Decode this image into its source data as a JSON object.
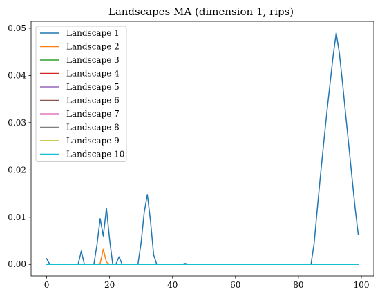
{
  "chart_data": {
    "type": "line",
    "title": "Landscapes MA (dimension 1, rips)",
    "xlabel": "",
    "ylabel": "",
    "xlim": [
      -4.95,
      103.95
    ],
    "ylim": [
      -0.00245,
      0.05145
    ],
    "xticks": [
      0,
      20,
      40,
      60,
      80,
      100
    ],
    "yticks": [
      0.0,
      0.01,
      0.02,
      0.03,
      0.04,
      0.05
    ],
    "xtick_labels": [
      "0",
      "20",
      "40",
      "60",
      "80",
      "100"
    ],
    "ytick_labels": [
      "0.00",
      "0.01",
      "0.02",
      "0.03",
      "0.04",
      "0.05"
    ],
    "grid": false,
    "legend_position": "top-left",
    "series": [
      {
        "name": "Landscape 1",
        "color": "#1f77b4",
        "points": [
          [
            0,
            0.0012
          ],
          [
            1,
            0
          ],
          [
            10,
            0
          ],
          [
            11,
            0.0028
          ],
          [
            12,
            0
          ],
          [
            15,
            0
          ],
          [
            16,
            0.0042
          ],
          [
            17,
            0.0097
          ],
          [
            18,
            0.006
          ],
          [
            19,
            0.0119
          ],
          [
            20,
            0.0053
          ],
          [
            21,
            0
          ],
          [
            22,
            0
          ],
          [
            23,
            0.0016
          ],
          [
            24,
            0
          ],
          [
            29,
            0
          ],
          [
            30,
            0.0045
          ],
          [
            31,
            0.011
          ],
          [
            32,
            0.0148
          ],
          [
            33,
            0.0092
          ],
          [
            34,
            0.002
          ],
          [
            35,
            0
          ],
          [
            43,
            0
          ],
          [
            44,
            0.0002
          ],
          [
            45,
            0
          ],
          [
            84,
            0
          ],
          [
            85,
            0.0045
          ],
          [
            86,
            0.0118
          ],
          [
            87,
            0.0188
          ],
          [
            88,
            0.0255
          ],
          [
            89,
            0.032
          ],
          [
            90,
            0.038
          ],
          [
            91,
            0.044
          ],
          [
            92,
            0.049
          ],
          [
            93,
            0.0448
          ],
          [
            94,
            0.0385
          ],
          [
            95,
            0.0318
          ],
          [
            96,
            0.0252
          ],
          [
            97,
            0.0185
          ],
          [
            98,
            0.012
          ],
          [
            99,
            0.0064
          ]
        ]
      },
      {
        "name": "Landscape 2",
        "color": "#ff7f0e",
        "points": [
          [
            0,
            0
          ],
          [
            16,
            0
          ],
          [
            17,
            0.0002
          ],
          [
            18,
            0.0032
          ],
          [
            19,
            0.0005
          ],
          [
            20,
            0
          ],
          [
            99,
            0
          ]
        ]
      },
      {
        "name": "Landscape 3",
        "color": "#2ca02c",
        "points": [
          [
            0,
            0
          ],
          [
            99,
            0
          ]
        ]
      },
      {
        "name": "Landscape 4",
        "color": "#d62728",
        "points": [
          [
            0,
            0
          ],
          [
            99,
            0
          ]
        ]
      },
      {
        "name": "Landscape 5",
        "color": "#9467bd",
        "points": [
          [
            0,
            0
          ],
          [
            99,
            0
          ]
        ]
      },
      {
        "name": "Landscape 6",
        "color": "#8c564b",
        "points": [
          [
            0,
            0
          ],
          [
            99,
            0
          ]
        ]
      },
      {
        "name": "Landscape 7",
        "color": "#e377c2",
        "points": [
          [
            0,
            0
          ],
          [
            99,
            0
          ]
        ]
      },
      {
        "name": "Landscape 8",
        "color": "#7f7f7f",
        "points": [
          [
            0,
            0
          ],
          [
            99,
            0
          ]
        ]
      },
      {
        "name": "Landscape 9",
        "color": "#bcbd22",
        "points": [
          [
            0,
            0
          ],
          [
            99,
            0
          ]
        ]
      },
      {
        "name": "Landscape 10",
        "color": "#17becf",
        "points": [
          [
            0,
            0
          ],
          [
            99,
            0
          ]
        ]
      }
    ]
  }
}
